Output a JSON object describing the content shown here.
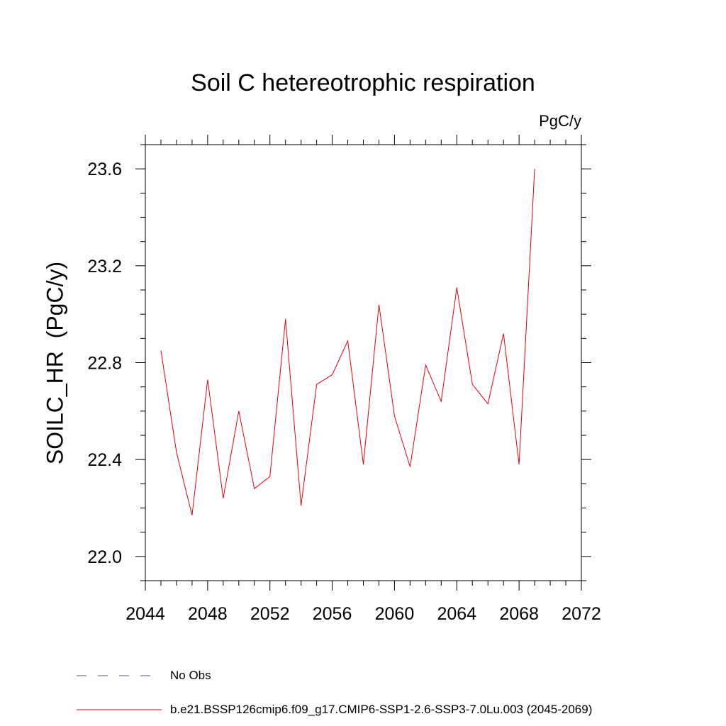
{
  "chart_data": {
    "type": "line",
    "title": "Soil C hetereotrophic respiration",
    "units_label": "PgC/y",
    "ylabel": "SOILC_HR  (PgC/y)",
    "xlabel": "",
    "xlim": [
      2044,
      2072
    ],
    "ylim": [
      21.9,
      23.7
    ],
    "x_major_ticks": [
      2044,
      2048,
      2052,
      2056,
      2060,
      2064,
      2068,
      2072
    ],
    "x_tick_labels": [
      "2044",
      "2048",
      "2052",
      "2056",
      "2060",
      "2064",
      "2068",
      "2072"
    ],
    "y_major_ticks": [
      22.0,
      22.4,
      22.8,
      23.2,
      23.6
    ],
    "y_tick_labels": [
      "22.0",
      "22.4",
      "22.8",
      "23.2",
      "23.6"
    ],
    "grid": false,
    "legend_position": "bottom",
    "series": [
      {
        "name": "No Obs",
        "color": "#5a4fa0",
        "style": "dashed",
        "x": [],
        "values": []
      },
      {
        "name": "b.e21.BSSP126cmip6.f09_g17.CMIP6-SSP1-2.6-SSP3-7.0Lu.003 (2045-2069)",
        "color": "#e8000b",
        "style": "solid",
        "x": [
          2045,
          2046,
          2047,
          2048,
          2049,
          2050,
          2051,
          2052,
          2053,
          2054,
          2055,
          2056,
          2057,
          2058,
          2059,
          2060,
          2061,
          2062,
          2063,
          2064,
          2065,
          2066,
          2067,
          2068,
          2069
        ],
        "values": [
          22.85,
          22.43,
          22.17,
          22.73,
          22.24,
          22.6,
          22.28,
          22.33,
          22.98,
          22.21,
          22.71,
          22.75,
          22.89,
          22.38,
          23.04,
          22.58,
          22.37,
          22.79,
          22.64,
          23.11,
          22.71,
          22.63,
          22.92,
          22.38,
          23.6
        ]
      }
    ]
  }
}
